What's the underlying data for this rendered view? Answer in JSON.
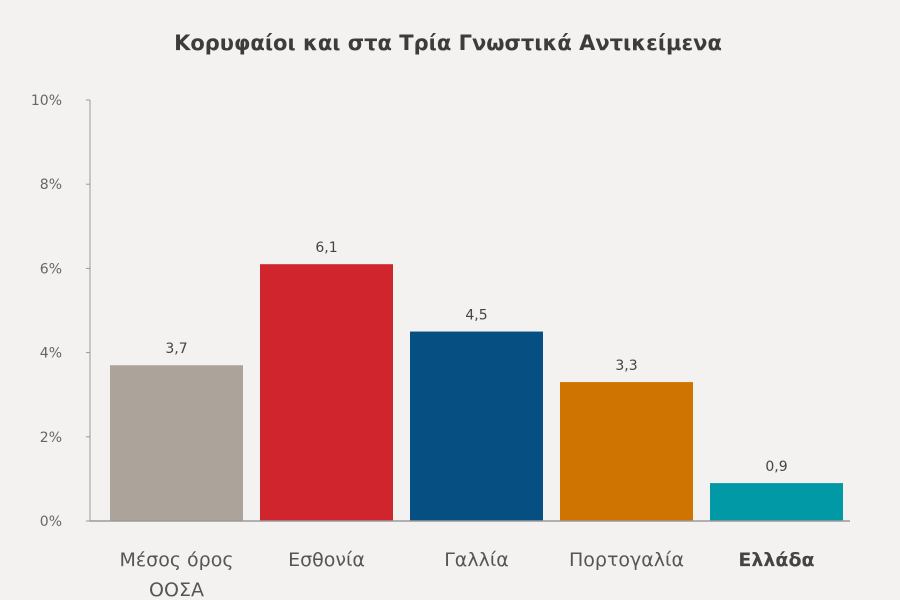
{
  "chart_data": {
    "type": "bar",
    "title": "Κορυφαίοι και στα Τρία Γνωστικά Αντικείμενα",
    "xlabel": "",
    "ylabel": "",
    "ylim": [
      0,
      10
    ],
    "yticks": [
      0,
      2,
      4,
      6,
      8,
      10
    ],
    "ytick_labels": [
      "0%",
      "2%",
      "4%",
      "6%",
      "8%",
      "10%"
    ],
    "grid": false,
    "categories": [
      [
        "Μέσος όρος",
        "ΟΟΣΑ"
      ],
      [
        "Εσθονία"
      ],
      [
        "Γαλλία"
      ],
      [
        "Πορτογαλία"
      ],
      [
        "Ελλάδα"
      ]
    ],
    "values": [
      3.7,
      6.1,
      4.5,
      3.3,
      0.9
    ],
    "data_labels": [
      "3,7",
      "6,1",
      "4,5",
      "3,3",
      "0,9"
    ],
    "colors": [
      "#aca49b",
      "#d0252d",
      "#064f82",
      "#cf7400",
      "#0099a5"
    ],
    "highlight_index": 4
  }
}
